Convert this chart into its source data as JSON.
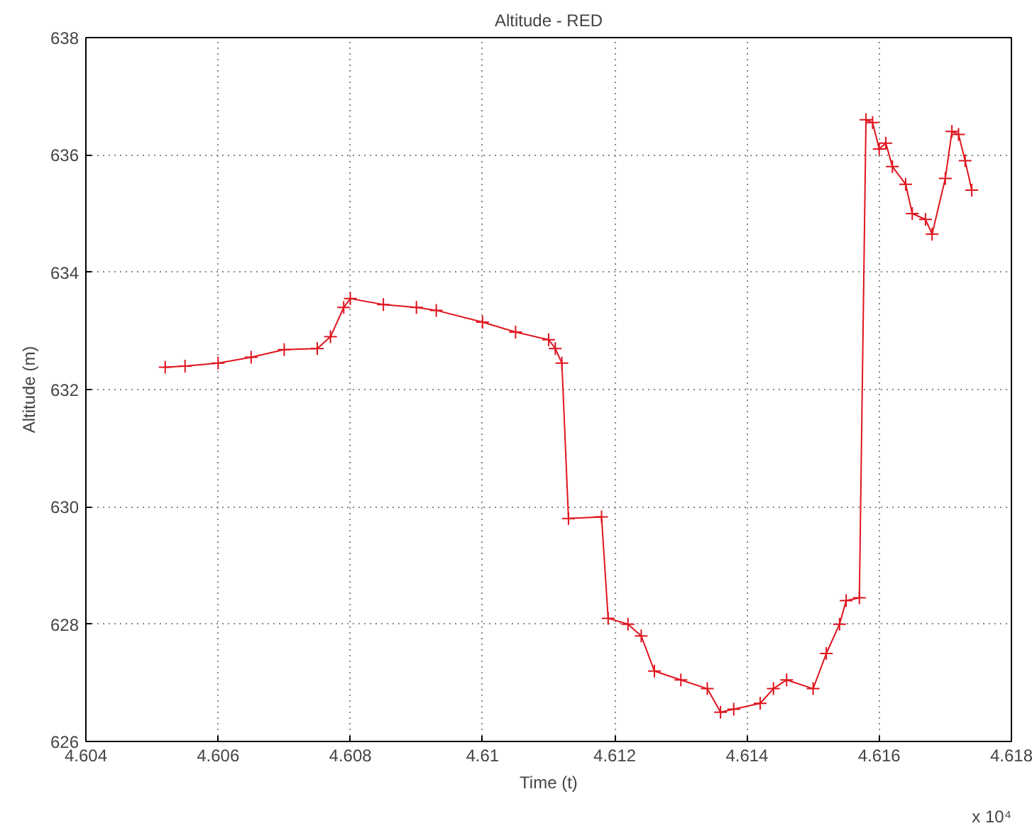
{
  "chart_data": {
    "type": "line",
    "title": "Altitude - RED",
    "xlabel": "Time (t)",
    "ylabel": "Altitude (m)",
    "annotations": [
      "x 10⁴"
    ],
    "x": [
      4.6052,
      4.6055,
      4.606,
      4.6065,
      4.607,
      4.6075,
      4.6077,
      4.6079,
      4.608,
      4.6085,
      4.609,
      4.6093,
      4.61,
      4.6105,
      4.611,
      4.6111,
      4.6112,
      4.6113,
      4.6118,
      4.6119,
      4.6122,
      4.6124,
      4.6126,
      4.613,
      4.6134,
      4.6136,
      4.6138,
      4.6142,
      4.6144,
      4.6146,
      4.615,
      4.6152,
      4.6154,
      4.6155,
      4.6157,
      4.6158,
      4.6159,
      4.616,
      4.6161,
      4.6162,
      4.6164,
      4.6165,
      4.6167,
      4.6168,
      4.617,
      4.6171,
      4.6172,
      4.6173,
      4.6174
    ],
    "series": [
      {
        "color": "#e0141e",
        "values": [
          632.38,
          632.4,
          632.45,
          632.55,
          632.68,
          632.7,
          632.9,
          633.4,
          633.55,
          633.45,
          633.4,
          633.35,
          633.15,
          632.98,
          632.85,
          632.7,
          632.45,
          629.8,
          629.83,
          628.1,
          628.0,
          627.8,
          627.2,
          627.05,
          626.9,
          626.5,
          626.55,
          626.65,
          626.9,
          627.05,
          626.9,
          627.5,
          628.0,
          628.4,
          628.45,
          636.6,
          636.55,
          636.1,
          636.2,
          635.8,
          635.5,
          635.0,
          634.9,
          634.65,
          635.6,
          636.4,
          636.35,
          635.9,
          635.4
        ]
      }
    ],
    "xlim": [
      4.604,
      4.618
    ],
    "xticks": [
      4.604,
      4.606,
      4.608,
      4.61,
      4.612,
      4.614,
      4.616,
      4.618
    ],
    "ylim": [
      626,
      638
    ],
    "yticks": [
      626,
      628,
      630,
      632,
      634,
      636,
      638
    ],
    "grid": true,
    "marker": "cross",
    "line_style": "solid"
  }
}
